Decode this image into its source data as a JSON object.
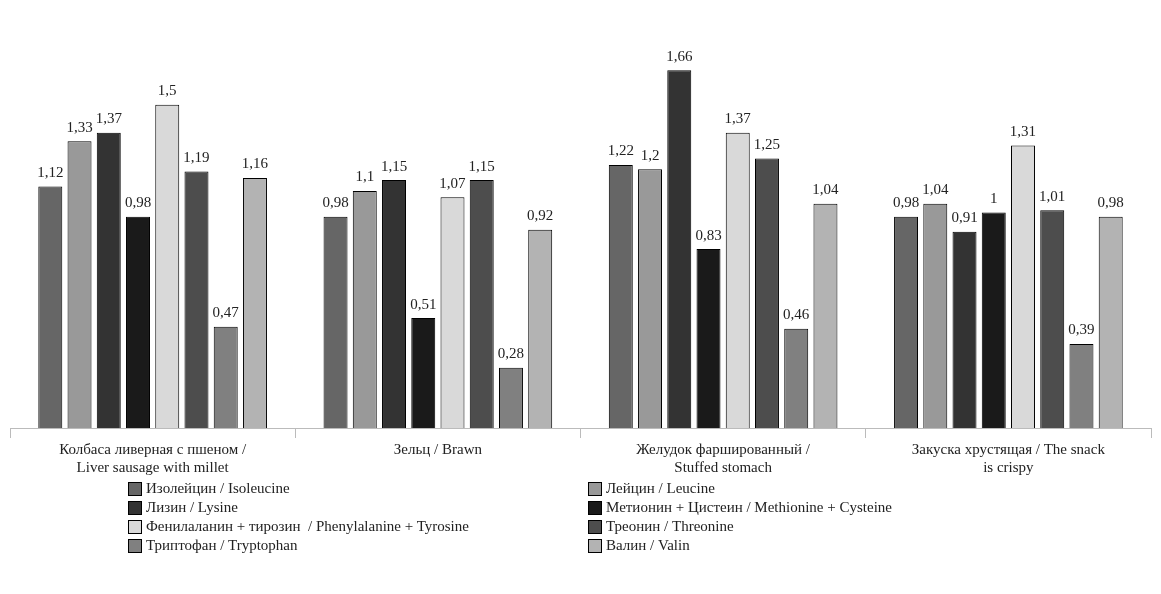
{
  "chart_data": {
    "type": "bar",
    "categories": [
      "Колбаса ливерная с пшеном / Liver sausage with millet",
      "Зельц / Brawn",
      "Желудок фаршированный / Stuffed stomach",
      "Закуска хрустящая / The snack is crispy"
    ],
    "series": [
      {
        "name": "Изолейцин / Isoleucine",
        "color": "#666666",
        "values": [
          1.12,
          0.98,
          1.22,
          0.98
        ],
        "value_labels": [
          "1,12",
          "0,98",
          "1,22",
          "0,98"
        ]
      },
      {
        "name": "Лейцин / Leucine",
        "color": "#999999",
        "values": [
          1.33,
          1.1,
          1.2,
          1.04
        ],
        "value_labels": [
          "1,33",
          "1,1",
          "1,2",
          "1,04"
        ]
      },
      {
        "name": "Лизин / Lysine",
        "color": "#333333",
        "values": [
          1.37,
          1.15,
          1.66,
          0.91
        ],
        "value_labels": [
          "1,37",
          "1,15",
          "1,66",
          "0,91"
        ]
      },
      {
        "name": "Метионин + Цистеин / Methionine + Cysteine",
        "color": "#1a1a1a",
        "values": [
          0.98,
          0.51,
          0.83,
          1
        ],
        "value_labels": [
          "0,98",
          "0,51",
          "0,83",
          "1"
        ]
      },
      {
        "name": "Фенилаланин + тирозин  / Phenylalanine + Tyrosine",
        "color": "#d9d9d9",
        "values": [
          1.5,
          1.07,
          1.37,
          1.31
        ],
        "value_labels": [
          "1,5",
          "1,07",
          "1,37",
          "1,31"
        ]
      },
      {
        "name": "Треонин / Threonine",
        "color": "#4d4d4d",
        "values": [
          1.19,
          1.15,
          1.25,
          1.01
        ],
        "value_labels": [
          "1,19",
          "1,15",
          "1,25",
          "1,01"
        ]
      },
      {
        "name": "Триптофан / Tryptophan",
        "color": "#808080",
        "values": [
          0.47,
          0.28,
          0.46,
          0.39
        ],
        "value_labels": [
          "0,47",
          "0,28",
          "0,46",
          "0,39"
        ]
      },
      {
        "name": "Валин / Valin",
        "color": "#b3b3b3",
        "values": [
          1.16,
          0.92,
          1.04,
          0.98
        ],
        "value_labels": [
          "1,16",
          "0,92",
          "1,04",
          "0,98"
        ]
      }
    ],
    "legend": "bottom",
    "grid": false
  }
}
